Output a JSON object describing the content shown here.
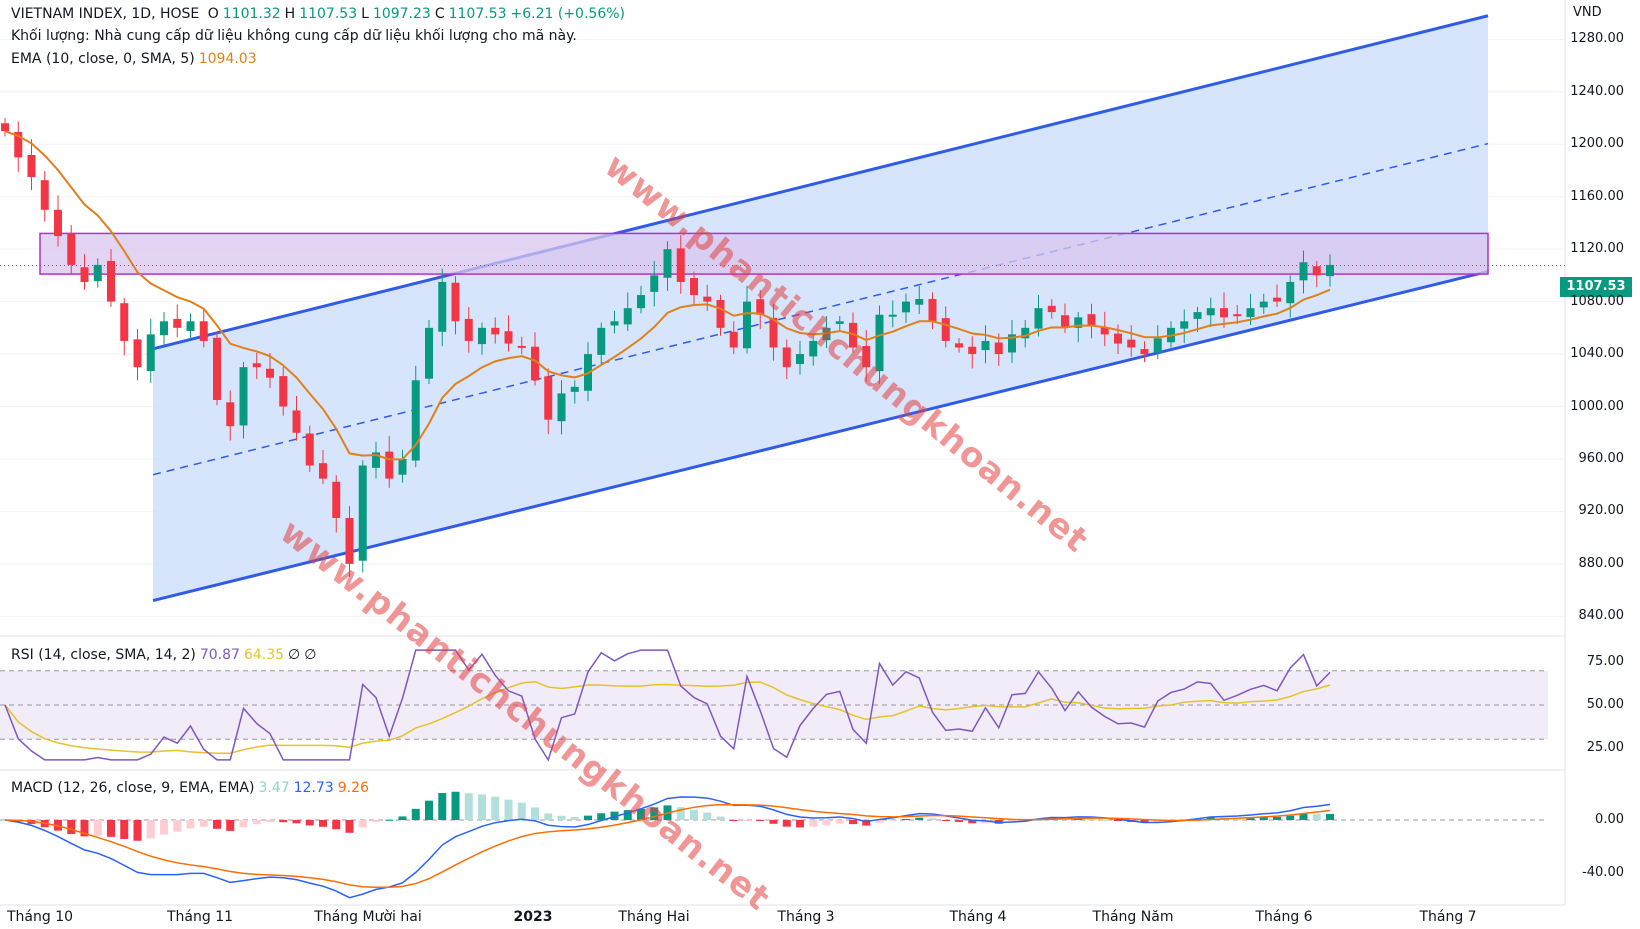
{
  "header": {
    "symbol": "VIETNAM INDEX, 1D, HOSE",
    "open_label": "O",
    "open": "1101.32",
    "high_label": "H",
    "high": "1107.53",
    "low_label": "L",
    "low": "1097.23",
    "close_label": "C",
    "close": "1107.53",
    "change": "+6.21 (+0.56%)",
    "volume_note": "Khối lượng: Nhà cung cấp dữ liệu không cung cấp dữ liệu khối lượng cho mã này.",
    "ema_label": "EMA (10, close, 0, SMA, 5)",
    "ema_value": "1094.03"
  },
  "rsi_legend": {
    "label": "RSI (14, close, SMA, 14, 2)",
    "value": "70.87",
    "sma": "64.35",
    "extra1": "∅",
    "extra2": "∅"
  },
  "macd_legend": {
    "label": "MACD (12, 26, close, 9, EMA, EMA)",
    "hist": "3.47",
    "macd": "12.73",
    "signal": "9.26"
  },
  "price_axis": {
    "unit": "VND",
    "ticks": [
      "1280.00",
      "1240.00",
      "1200.00",
      "1160.00",
      "1120.00",
      "1080.00",
      "1040.00",
      "1000.00",
      "960.00",
      "920.00",
      "880.00",
      "840.00"
    ],
    "last_price": "1107.53"
  },
  "rsi_axis": {
    "ticks": [
      "75.00",
      "50.00",
      "25.00"
    ]
  },
  "macd_axis": {
    "ticks": [
      "0.00",
      "-40.00"
    ]
  },
  "time_axis": {
    "ticks": [
      "Tháng 10",
      "Tháng 11",
      "Tháng Mười hai",
      "2023",
      "Tháng Hai",
      "Tháng 3",
      "Tháng 4",
      "Tháng Năm",
      "Tháng 6",
      "Tháng 7"
    ],
    "bold_index": 3
  },
  "watermark": {
    "text": "www.phantichchungkhoan.net"
  },
  "colors": {
    "up": "#089981",
    "down": "#f23645",
    "channel_line": "#2f5be8",
    "channel_fill": "#cfe0fb",
    "zone_fill": "#d9c6ef",
    "zone_stroke": "#b22fd0",
    "ema": "#e0801b",
    "rsi": "#7e57c2",
    "rsi_sma": "#e6c229",
    "macd": "#2962ff",
    "signal": "#ff6d00"
  },
  "chart_data": {
    "type": "candlestick",
    "title": "VIETNAM INDEX, 1D, HOSE",
    "ylim": [
      825,
      1310
    ],
    "price_path": [
      1210,
      1190,
      1175,
      1150,
      1130,
      1108,
      1095,
      1108,
      1080,
      1050,
      1030,
      1055,
      1065,
      1060,
      1065,
      1050,
      1005,
      985,
      1030,
      1030,
      1022,
      1000,
      980,
      955,
      945,
      915,
      880,
      955,
      965,
      945,
      960,
      1020,
      1060,
      1095,
      1065,
      1050,
      1060,
      1055,
      1048,
      1045,
      1020,
      990,
      1010,
      1015,
      1040,
      1060,
      1065,
      1075,
      1085,
      1100,
      1120,
      1095,
      1085,
      1080,
      1060,
      1045,
      1080,
      1070,
      1045,
      1030,
      1040,
      1050,
      1060,
      1065,
      1045,
      1030,
      1070,
      1070,
      1080,
      1082,
      1065,
      1050,
      1045,
      1040,
      1050,
      1040,
      1055,
      1060,
      1075,
      1072,
      1060,
      1068,
      1062,
      1055,
      1048,
      1045,
      1040,
      1052,
      1060,
      1065,
      1072,
      1075,
      1068,
      1070,
      1075,
      1080,
      1080,
      1095,
      1110,
      1100,
      1108
    ],
    "ema_note": "EMA 10 overlay",
    "channel": {
      "lower_start": [
        0,
        852
      ],
      "lower_end": [
        1,
        1103
      ],
      "upper_start": [
        0,
        1044
      ],
      "upper_end": [
        1,
        1298
      ]
    },
    "resistance_zone": [
      1101,
      1132
    ],
    "rsi_levels": [
      70,
      50,
      30
    ],
    "rsi_range": [
      15,
      85
    ],
    "macd_range": [
      -60,
      30
    ]
  }
}
